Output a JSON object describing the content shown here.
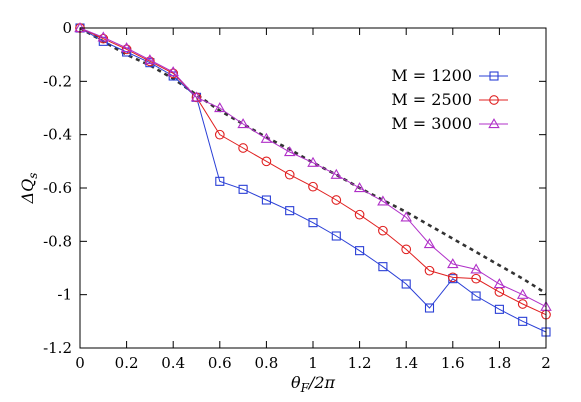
{
  "chart_data": {
    "type": "line",
    "xlabel": "θ_F/2π",
    "ylabel": "ΔQ_s",
    "xlim": [
      0,
      2
    ],
    "ylim": [
      -1.2,
      0
    ],
    "xticks": [
      0,
      0.2,
      0.4,
      0.6,
      0.8,
      1,
      1.2,
      1.4,
      1.6,
      1.8,
      2
    ],
    "xtick_labels": [
      "0",
      "0.2",
      "0.4",
      "0.6",
      "0.8",
      "1",
      "1.2",
      "1.4",
      "1.6",
      "1.8",
      "2"
    ],
    "yticks": [
      0,
      -0.2,
      -0.4,
      -0.6,
      -0.8,
      -1,
      -1.2
    ],
    "ytick_labels": [
      "0",
      "-0.2",
      "-0.4",
      "-0.6",
      "-0.8",
      "-1",
      "-1.2"
    ],
    "grid": false,
    "legend_position": "top-right",
    "x": [
      0,
      0.1,
      0.2,
      0.3,
      0.4,
      0.5,
      0.6,
      0.7,
      0.8,
      0.9,
      1.0,
      1.1,
      1.2,
      1.3,
      1.4,
      1.5,
      1.6,
      1.7,
      1.8,
      1.9,
      2.0
    ],
    "series": [
      {
        "name": "M = 1200",
        "color": "#2a3fd6",
        "marker": "square",
        "values": [
          0,
          -0.05,
          -0.09,
          -0.13,
          -0.18,
          -0.26,
          -0.575,
          -0.605,
          -0.645,
          -0.685,
          -0.73,
          -0.78,
          -0.835,
          -0.895,
          -0.96,
          -1.05,
          -0.94,
          -1.005,
          -1.055,
          -1.1,
          -1.14
        ]
      },
      {
        "name": "M = 2500",
        "color": "#e02020",
        "marker": "circle",
        "values": [
          0,
          -0.04,
          -0.08,
          -0.125,
          -0.17,
          -0.26,
          -0.4,
          -0.45,
          -0.5,
          -0.55,
          -0.595,
          -0.645,
          -0.7,
          -0.76,
          -0.83,
          -0.91,
          -0.935,
          -0.94,
          -0.99,
          -1.035,
          -1.075
        ]
      },
      {
        "name": "M = 3000",
        "color": "#b030c8",
        "marker": "triangle",
        "values": [
          0,
          -0.035,
          -0.075,
          -0.12,
          -0.165,
          -0.26,
          -0.3,
          -0.36,
          -0.415,
          -0.465,
          -0.505,
          -0.55,
          -0.6,
          -0.65,
          -0.71,
          -0.81,
          -0.885,
          -0.905,
          -0.96,
          -1.0,
          -1.045
        ]
      },
      {
        "color": "#333333",
        "style": "dashed",
        "values": [
          0,
          -0.05,
          -0.1,
          -0.14,
          -0.19,
          -0.25,
          -0.31,
          -0.36,
          -0.41,
          -0.455,
          -0.505,
          -0.55,
          -0.6,
          -0.645,
          -0.69,
          -0.74,
          -0.79,
          -0.84,
          -0.89,
          -0.94,
          -0.995
        ]
      }
    ]
  }
}
